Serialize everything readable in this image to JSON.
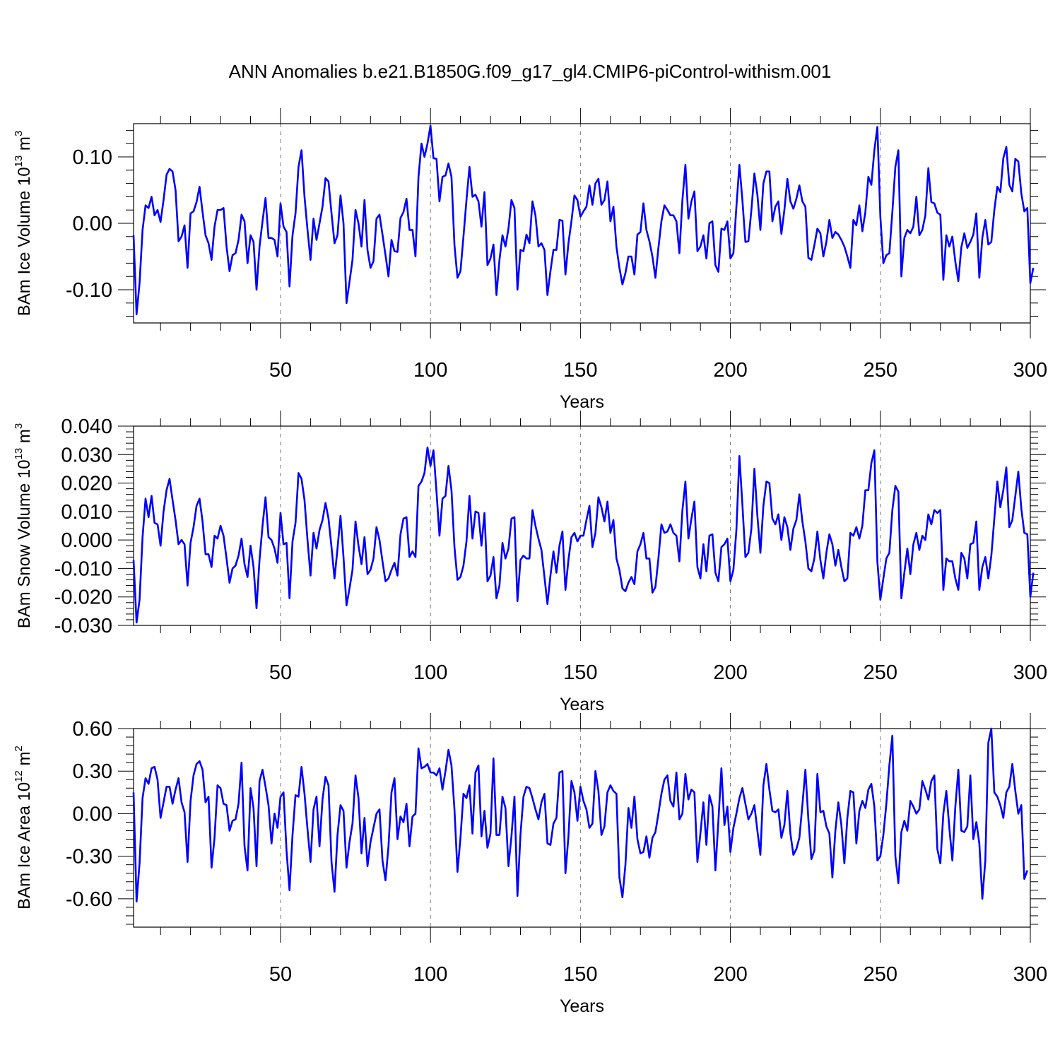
{
  "title": "ANN Anomalies b.e21.B1850G.f09_g17_gl4.CMIP6-piControl-withism.001",
  "line_color": "#0000ff",
  "chart_data": [
    {
      "type": "line",
      "ylabel": "BAm Ice Volume 10",
      "ylabel_exp": "13",
      "ylabel_unit": " m",
      "ylabel_unit_exp": "3",
      "xlabel": "Years",
      "xlim": [
        1,
        300
      ],
      "ylim": [
        -0.15,
        0.15
      ],
      "xticks": [
        "50",
        "100",
        "150",
        "200",
        "250",
        "300"
      ],
      "yticks": [
        "0.10",
        "0.00",
        "-0.10"
      ],
      "grid": "dashed vertical at 50-year intervals",
      "series": [
        {
          "x_start": 1,
          "values": [
            -0.018,
            -0.137,
            -0.09,
            -0.01,
            0.027,
            0.023,
            0.04,
            0.012,
            0.02,
            0.002,
            0.035,
            0.073,
            0.082,
            0.078,
            0.05,
            -0.027,
            -0.02,
            -0.003,
            -0.067,
            0.015,
            0.018,
            0.032,
            0.055,
            0.017,
            -0.018,
            -0.03,
            -0.055,
            -0.005,
            0.02,
            0.02,
            0.023,
            -0.035,
            -0.072,
            -0.048,
            -0.045,
            -0.025,
            0.013,
            0.003,
            -0.06,
            -0.018,
            -0.028,
            -0.1,
            -0.035,
            0.003,
            0.038,
            -0.022,
            -0.022,
            -0.025,
            -0.05,
            0.03,
            -0.005,
            -0.013,
            -0.095,
            -0.018,
            0.015,
            0.085,
            0.11,
            0.04,
            -0.01,
            -0.055,
            0.007,
            -0.025,
            0.0,
            0.025,
            0.068,
            0.063,
            0.015,
            -0.03,
            -0.018,
            0.042,
            0.0,
            -0.12,
            -0.088,
            -0.055,
            0.02,
            0.0,
            -0.035,
            0.035,
            -0.04,
            -0.067,
            -0.057,
            0.007,
            0.013,
            -0.017,
            -0.048,
            -0.08,
            -0.025,
            -0.042,
            -0.043,
            0.008,
            0.017,
            0.037,
            -0.01,
            -0.01,
            -0.05,
            0.07,
            0.12,
            0.1,
            0.12,
            0.147,
            0.098,
            0.097,
            0.033,
            0.07,
            0.072,
            0.09,
            0.07,
            -0.033,
            -0.082,
            -0.072,
            -0.02,
            0.035,
            0.085,
            0.04,
            0.043,
            0.033,
            -0.005,
            0.047,
            -0.063,
            -0.053,
            -0.032,
            -0.108,
            -0.055,
            -0.018,
            -0.035,
            -0.008,
            0.035,
            0.023,
            -0.1,
            -0.04,
            -0.042,
            -0.017,
            -0.03,
            0.033,
            0.012,
            -0.035,
            -0.03,
            -0.04,
            -0.108,
            -0.072,
            -0.04,
            -0.04,
            0.005,
            0.004,
            -0.077,
            -0.03,
            0.003,
            0.042,
            0.035,
            0.01,
            0.018,
            0.025,
            0.057,
            0.028,
            0.06,
            0.067,
            0.028,
            0.035,
            0.063,
            0.003,
            0.025,
            -0.035,
            -0.067,
            -0.092,
            -0.075,
            -0.05,
            -0.05,
            -0.077,
            -0.017,
            -0.013,
            0.03,
            -0.01,
            -0.027,
            -0.05,
            -0.082,
            -0.037,
            0.003,
            0.027,
            0.02,
            0.012,
            0.012,
            0.003,
            -0.045,
            0.035,
            0.088,
            0.007,
            0.033,
            0.048,
            -0.042,
            -0.035,
            -0.018,
            -0.053,
            0.0,
            0.003,
            -0.063,
            -0.073,
            -0.008,
            -0.01,
            0.003,
            -0.053,
            -0.045,
            0.025,
            0.088,
            0.035,
            -0.028,
            -0.027,
            0.02,
            0.075,
            0.043,
            -0.01,
            0.06,
            0.078,
            0.078,
            0.003,
            0.025,
            0.033,
            -0.016,
            0.02,
            0.067,
            0.033,
            0.022,
            0.037,
            0.057,
            0.033,
            0.025,
            -0.052,
            -0.055,
            -0.033,
            -0.008,
            -0.015,
            -0.05,
            -0.028,
            0.005,
            -0.022,
            -0.013,
            -0.017,
            -0.025,
            -0.035,
            -0.05,
            -0.067,
            0.005,
            -0.003,
            0.027,
            -0.012,
            0.017,
            0.07,
            0.058,
            0.11,
            0.145,
            0.01,
            -0.06,
            -0.048,
            -0.045,
            0.017,
            0.085,
            0.11,
            -0.08,
            -0.022,
            -0.01,
            -0.015,
            -0.005,
            0.04,
            -0.018,
            -0.01,
            0.012,
            0.083,
            0.032,
            0.03,
            0.016,
            0.013,
            -0.085,
            -0.018,
            -0.035,
            -0.02,
            -0.058,
            -0.087,
            -0.036,
            -0.015,
            -0.037,
            -0.028,
            -0.017,
            0.015,
            -0.082,
            -0.022,
            0.005,
            -0.032,
            -0.028,
            0.02,
            0.055,
            0.047,
            0.098,
            0.115,
            0.058,
            0.048,
            0.097,
            0.093,
            0.045,
            0.018,
            0.023,
            -0.09,
            -0.067
          ]
        }
      ]
    },
    {
      "type": "line",
      "ylabel": "BAm Snow Volume 10",
      "ylabel_exp": "13",
      "ylabel_unit": " m",
      "ylabel_unit_exp": "3",
      "xlabel": "Years",
      "xlim": [
        1,
        300
      ],
      "ylim": [
        -0.03,
        0.04
      ],
      "xticks": [
        "50",
        "100",
        "150",
        "200",
        "250",
        "300"
      ],
      "yticks": [
        "0.040",
        "0.030",
        "0.020",
        "0.010",
        "0.000",
        "-0.010",
        "-0.020",
        "-0.030"
      ],
      "grid": "dashed vertical at 50-year intervals",
      "series": [
        {
          "x_start": 1,
          "values": [
            -0.007,
            -0.029,
            -0.021,
            0.001,
            0.0145,
            0.008,
            0.0155,
            0.006,
            0.0055,
            -0.002,
            0.01,
            0.0175,
            0.0215,
            0.014,
            0.007,
            -0.0015,
            0.0,
            -0.0015,
            -0.016,
            -0.001,
            0.0045,
            0.012,
            0.0145,
            0.0065,
            -0.005,
            -0.005,
            -0.0095,
            0.0015,
            0.0005,
            0.005,
            0.0015,
            -0.0065,
            -0.015,
            -0.01,
            -0.009,
            -0.0055,
            0.0005,
            -0.0085,
            -0.013,
            -0.002,
            -0.0095,
            -0.024,
            -0.007,
            0.005,
            0.015,
            0.001,
            0.0,
            -0.003,
            -0.008,
            0.0095,
            -0.0015,
            -0.001,
            -0.0205,
            -0.0005,
            0.006,
            0.0235,
            0.0215,
            0.014,
            0.0,
            -0.0125,
            0.0025,
            -0.003,
            0.0035,
            0.007,
            0.013,
            0.0075,
            -0.0025,
            -0.0135,
            -0.003,
            0.0085,
            -0.006,
            -0.023,
            -0.017,
            -0.0105,
            0.0065,
            -0.002,
            -0.0085,
            0.001,
            -0.012,
            -0.0105,
            -0.0065,
            0.0045,
            0.0,
            -0.0075,
            -0.0145,
            -0.0135,
            -0.0105,
            -0.008,
            -0.0125,
            0.002,
            0.0075,
            0.008,
            -0.006,
            -0.004,
            -0.006,
            0.019,
            0.0205,
            0.0235,
            0.0325,
            0.026,
            0.0315,
            0.017,
            0.0015,
            0.0145,
            0.0155,
            0.026,
            0.0175,
            -0.0025,
            -0.014,
            -0.013,
            -0.009,
            -0.0005,
            0.0155,
            0.0005,
            0.01,
            0.0095,
            -0.002,
            0.0095,
            -0.0145,
            -0.0125,
            -0.006,
            -0.0205,
            -0.016,
            -0.001,
            -0.0065,
            -0.003,
            0.0075,
            0.008,
            -0.0215,
            -0.007,
            -0.0055,
            -0.0065,
            -0.0065,
            0.0105,
            0.005,
            0.0005,
            -0.0035,
            -0.013,
            -0.0225,
            -0.0125,
            -0.004,
            -0.0115,
            -0.002,
            0.003,
            -0.0175,
            -0.007,
            0.001,
            0.0025,
            -0.0005,
            0.0015,
            0.0015,
            0.007,
            0.012,
            -0.0025,
            0.0025,
            0.015,
            0.0115,
            0.0065,
            0.0135,
            0.0025,
            0.007,
            -0.0065,
            -0.0105,
            -0.017,
            -0.018,
            -0.015,
            -0.013,
            -0.0155,
            -0.004,
            -0.0015,
            0.0025,
            -0.0065,
            -0.0065,
            -0.0185,
            -0.0165,
            -0.0065,
            0.0055,
            0.0025,
            0.003,
            0.0055,
            0.0025,
            0.0015,
            -0.0075,
            0.0105,
            0.0205,
            0.0005,
            0.0075,
            0.0135,
            -0.0095,
            -0.0135,
            -0.0015,
            -0.011,
            0.0015,
            0.002,
            -0.0115,
            -0.0145,
            -0.0025,
            -0.0015,
            0.0005,
            -0.0145,
            -0.0105,
            0.0035,
            0.0295,
            0.0125,
            -0.006,
            -0.0045,
            0.004,
            0.025,
            0.0085,
            -0.0045,
            0.012,
            0.0205,
            0.02,
            0.0075,
            0.0055,
            0.009,
            0.0,
            0.008,
            0.0045,
            -0.0035,
            0.004,
            0.007,
            0.016,
            0.0065,
            -0.0005,
            -0.01,
            -0.011,
            -0.0065,
            0.003,
            -0.007,
            -0.0135,
            -0.0045,
            0.002,
            -0.0015,
            -0.009,
            -0.0035,
            -0.0095,
            -0.0145,
            -0.0135,
            0.0025,
            0.0015,
            0.0045,
            0.0005,
            0.005,
            0.0175,
            0.0175,
            0.027,
            0.0315,
            -0.0075,
            -0.021,
            -0.0135,
            -0.0065,
            -0.0045,
            0.0105,
            0.019,
            0.017,
            -0.0205,
            -0.0115,
            -0.003,
            -0.012,
            -0.0015,
            0.0025,
            -0.0035,
            0.0015,
            0.0,
            0.009,
            0.0055,
            0.0105,
            0.0095,
            0.0105,
            -0.0175,
            -0.0065,
            -0.0075,
            -0.0075,
            -0.0135,
            -0.0175,
            -0.0045,
            -0.0065,
            -0.0135,
            -0.0015,
            -0.001,
            0.0065,
            -0.0175,
            -0.0095,
            -0.006,
            -0.0135,
            -0.0055,
            0.0075,
            0.0205,
            0.0115,
            0.0175,
            0.0255,
            0.0045,
            0.007,
            0.0155,
            0.024,
            0.011,
            0.0025,
            0.002,
            -0.02,
            -0.0115
          ]
        }
      ]
    },
    {
      "type": "line",
      "ylabel": "BAm Ice Area 10",
      "ylabel_exp": "12",
      "ylabel_unit": " m",
      "ylabel_unit_exp": "2",
      "xlabel": "Years",
      "xlim": [
        1,
        300
      ],
      "ylim": [
        -0.8,
        0.6
      ],
      "xticks": [
        "50",
        "100",
        "150",
        "200",
        "250",
        "300"
      ],
      "yticks": [
        "0.60",
        "0.30",
        "0.00",
        "-0.30",
        "-0.60"
      ],
      "grid": "dashed vertical at 50-year intervals",
      "series": [
        {
          "x_start": 1,
          "values": [
            0.15,
            -0.62,
            -0.35,
            0.11,
            0.25,
            0.21,
            0.32,
            0.33,
            0.24,
            -0.03,
            0.08,
            0.19,
            0.19,
            0.07,
            0.17,
            0.25,
            0.08,
            0.01,
            -0.34,
            0.09,
            0.27,
            0.35,
            0.37,
            0.31,
            0.08,
            0.12,
            -0.38,
            -0.17,
            0.2,
            0.18,
            0.07,
            0.06,
            -0.12,
            -0.05,
            -0.04,
            0.07,
            0.36,
            -0.23,
            -0.4,
            0.18,
            0.04,
            -0.37,
            0.23,
            0.31,
            0.19,
            0.06,
            -0.21,
            0.0,
            -0.1,
            0.12,
            0.15,
            -0.26,
            -0.54,
            -0.15,
            0.13,
            0.12,
            0.33,
            0.14,
            -0.11,
            -0.34,
            0.03,
            0.12,
            -0.23,
            0.1,
            0.26,
            0.2,
            -0.34,
            -0.55,
            -0.15,
            0.06,
            0.02,
            -0.38,
            -0.2,
            -0.07,
            0.27,
            0.11,
            -0.28,
            -0.03,
            -0.37,
            -0.2,
            -0.1,
            0.0,
            0.03,
            -0.33,
            -0.47,
            -0.23,
            0.15,
            0.25,
            -0.18,
            -0.02,
            -0.06,
            0.07,
            -0.23,
            -0.02,
            0.0,
            0.46,
            0.32,
            0.33,
            0.35,
            0.29,
            0.29,
            0.27,
            0.32,
            0.17,
            0.3,
            0.45,
            0.34,
            0.03,
            -0.41,
            -0.17,
            0.14,
            0.11,
            0.2,
            -0.14,
            0.29,
            0.34,
            -0.16,
            0.02,
            -0.24,
            -0.14,
            0.39,
            -0.15,
            -0.15,
            0.12,
            0.04,
            -0.37,
            -0.16,
            0.12,
            -0.58,
            -0.15,
            0.12,
            0.19,
            0.18,
            0.11,
            0.03,
            -0.04,
            0.08,
            0.14,
            -0.21,
            -0.22,
            -0.07,
            -0.03,
            0.29,
            0.3,
            -0.42,
            -0.16,
            0.23,
            0.15,
            -0.05,
            0.19,
            0.09,
            0.03,
            -0.1,
            -0.07,
            0.3,
            0.16,
            -0.15,
            -0.09,
            0.15,
            0.2,
            0.16,
            0.14,
            -0.45,
            -0.59,
            -0.36,
            0.04,
            -0.1,
            0.12,
            -0.18,
            -0.28,
            -0.27,
            -0.16,
            -0.31,
            -0.17,
            -0.13,
            0.0,
            0.14,
            0.24,
            0.27,
            0.09,
            0.05,
            0.29,
            -0.04,
            0.0,
            0.28,
            0.1,
            0.17,
            0.15,
            -0.34,
            -0.14,
            0.08,
            -0.22,
            0.13,
            0.05,
            -0.4,
            -0.05,
            0.32,
            -0.08,
            0.05,
            -0.27,
            -0.1,
            0.0,
            0.11,
            0.18,
            0.07,
            -0.04,
            0.0,
            0.06,
            -0.12,
            -0.29,
            0.2,
            0.35,
            0.17,
            0.02,
            0.01,
            0.03,
            -0.17,
            -0.08,
            0.16,
            -0.14,
            -0.29,
            -0.25,
            -0.17,
            0.06,
            0.31,
            -0.04,
            -0.32,
            -0.26,
            0.28,
            0.01,
            0.02,
            -0.09,
            -0.14,
            -0.45,
            -0.12,
            0.08,
            -0.08,
            -0.35,
            -0.03,
            0.16,
            0.15,
            -0.21,
            0.02,
            0.09,
            0.04,
            0.17,
            0.21,
            0.05,
            -0.33,
            -0.3,
            -0.15,
            0.07,
            0.34,
            0.55,
            -0.3,
            -0.49,
            -0.13,
            -0.05,
            -0.12,
            0.09,
            0.05,
            0.0,
            0.03,
            0.23,
            0.17,
            0.1,
            0.23,
            0.27,
            -0.25,
            -0.35,
            0.0,
            0.16,
            -0.1,
            -0.33,
            0.05,
            0.31,
            -0.12,
            -0.13,
            -0.09,
            0.27,
            -0.18,
            -0.06,
            -0.21,
            -0.6,
            -0.33,
            0.5,
            0.6,
            0.15,
            0.12,
            0.06,
            -0.03,
            0.15,
            0.19,
            0.35,
            0.16,
            0.0,
            0.06,
            -0.46,
            -0.4
          ]
        }
      ]
    }
  ]
}
